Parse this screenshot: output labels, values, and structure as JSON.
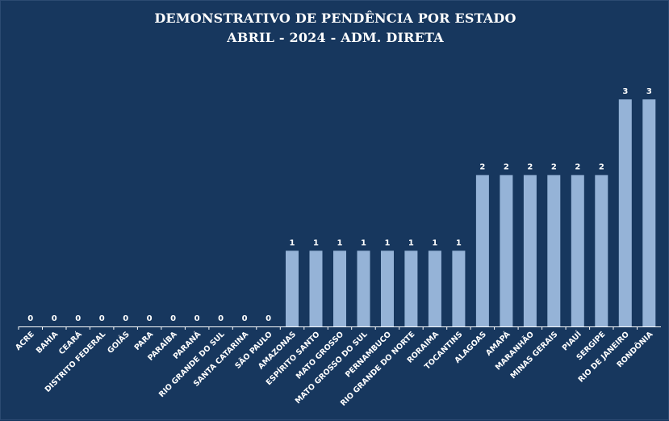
{
  "chart_data": {
    "type": "bar",
    "title": "DEMONSTRATIVO DE PENDÊNCIA POR ESTADO",
    "subtitle": "ABRIL - 2024 - ADM. DIRETA",
    "xlabel": "",
    "ylabel": "",
    "ylim": [
      0,
      3
    ],
    "grid": false,
    "legend": "none",
    "categories": [
      "ACRE",
      "BAHIA",
      "CEARÁ",
      "DISTRITO FEDERAL",
      "GOIÁS",
      "PARA",
      "PARAÍBA",
      "PARANÁ",
      "RIO GRANDE DO SUL",
      "SANTA CATARINA",
      "SÃO PAULO",
      "AMAZONAS",
      "ESPÍRITO SANTO",
      "MATO GROSSO",
      "MATO GROSSO DO SUL",
      "PERNAMBUCO",
      "RIO GRANDE DO NORTE",
      "RORAIMA",
      "TOCANTINS",
      "ALAGOAS",
      "AMAPÁ",
      "MARANHÃO",
      "MINAS GERAIS",
      "PIAUÍ",
      "SERGIPE",
      "RIO DE JANEIRO",
      "RONDÔNIA"
    ],
    "values": [
      0,
      0,
      0,
      0,
      0,
      0,
      0,
      0,
      0,
      0,
      0,
      1,
      1,
      1,
      1,
      1,
      1,
      1,
      1,
      2,
      2,
      2,
      2,
      2,
      2,
      3,
      3
    ],
    "colors": {
      "background": "#17375e",
      "bar": "#95b3d7",
      "text": "#ffffff",
      "axis": "#ffffff"
    }
  }
}
